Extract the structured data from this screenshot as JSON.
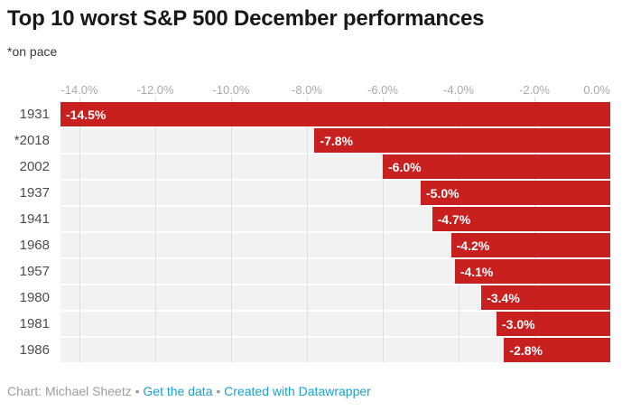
{
  "chart_data": {
    "type": "bar",
    "orientation": "horizontal",
    "title": "Top 10 worst S&P 500 December performances",
    "subtitle": "*on pace",
    "categories": [
      "1931",
      "*2018",
      "2002",
      "1937",
      "1941",
      "1968",
      "1957",
      "1980",
      "1981",
      "1986"
    ],
    "values": [
      -14.5,
      -7.8,
      -6.0,
      -5.0,
      -4.7,
      -4.2,
      -4.1,
      -3.4,
      -3.0,
      -2.8
    ],
    "value_labels": [
      "-14.5%",
      "-7.8%",
      "-6.0%",
      "-5.0%",
      "-4.7%",
      "-4.2%",
      "-4.1%",
      "-3.4%",
      "-3.0%",
      "-2.8%"
    ],
    "x_ticks": [
      {
        "value": -14,
        "label": "-14.0%"
      },
      {
        "value": -12,
        "label": "-12.0%"
      },
      {
        "value": -10,
        "label": "-10.0%"
      },
      {
        "value": -8,
        "label": "-8.0%"
      },
      {
        "value": -6,
        "label": "-6.0%"
      },
      {
        "value": -4,
        "label": "-4.0%"
      },
      {
        "value": -2,
        "label": "-2.0%"
      },
      {
        "value": 0,
        "label": "0.0%"
      }
    ],
    "xlim": [
      -14.5,
      0
    ],
    "grid": true,
    "legend": "none",
    "bar_color": "#c7201f",
    "track_color": "#f2f2f2"
  },
  "footer": {
    "credit": "Chart: Michael Sheetz",
    "separator": "•",
    "link_data": "Get the data",
    "link_tool": "Created with Datawrapper"
  },
  "colors": {
    "bar": "#c7201f",
    "track": "#f2f2f2",
    "grid": "#e0e0e0",
    "title": "#181818",
    "subtitle": "#383838",
    "year": "#4c4c4c",
    "tick": "#a9a9a9",
    "foot": "#9c9c9c",
    "link": "#18a1cd"
  }
}
